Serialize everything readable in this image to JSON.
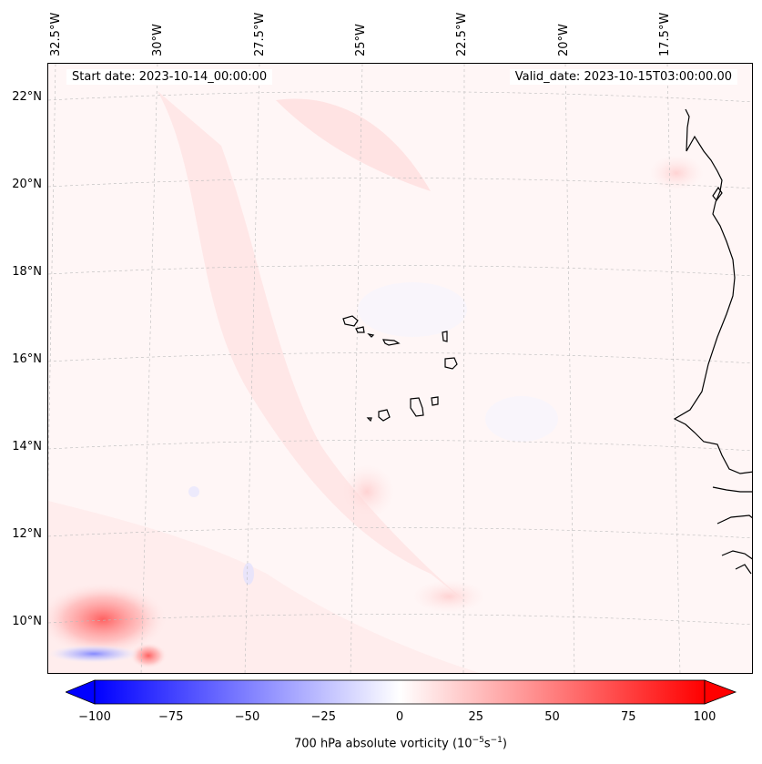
{
  "map": {
    "start_date": "Start date: 2023-10-14_00:00:00",
    "valid_date": "Valid_date: 2023-10-15T03:00:00.00",
    "longitude_labels": [
      "32.5°W",
      "30°W",
      "27.5°W",
      "25°W",
      "22.5°W",
      "20°W",
      "17.5°W"
    ],
    "latitude_labels": [
      "22°N",
      "20°N",
      "18°N",
      "16°N",
      "14°N",
      "12°N",
      "10°N"
    ],
    "field": "700 hPa absolute vorticity",
    "colormap": "bwr",
    "colors": {
      "negative_max": "#0000ff",
      "neutral": "#ffffff",
      "positive_max": "#ff0000",
      "coastline": "#000000"
    }
  },
  "colorbar": {
    "ticks": [
      "−100",
      "−75",
      "−50",
      "−25",
      "0",
      "25",
      "50",
      "75",
      "100"
    ],
    "label_text": "700 hPa absolute vorticity (10",
    "label_exp1": "−5",
    "label_mid": "s",
    "label_exp2": "−1",
    "label_end": ")"
  }
}
